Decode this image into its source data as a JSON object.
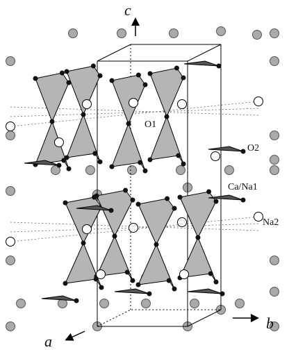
{
  "axes": {
    "c": "c",
    "a": "a",
    "b": "b"
  },
  "labels": {
    "o1": "O1",
    "o2": "O2",
    "ca_na1": "Ca/Na1",
    "na2": "Na2"
  }
}
